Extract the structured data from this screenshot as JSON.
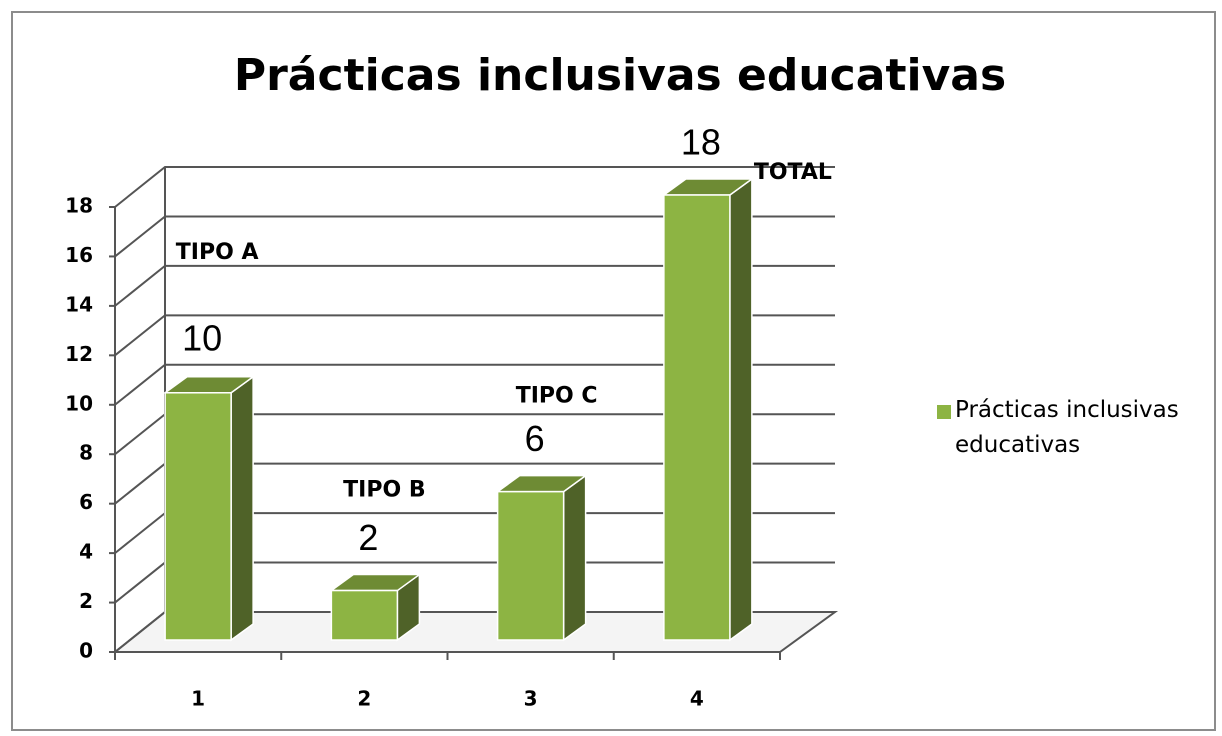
{
  "chart_data": {
    "type": "bar3d",
    "title": "Prácticas inclusivas educativas",
    "categories": [
      "1",
      "2",
      "3",
      "4"
    ],
    "series": [
      {
        "name": "Prácticas inclusivas educativas",
        "color": "#8db443",
        "values": [
          10,
          2,
          6,
          18
        ]
      }
    ],
    "annotations": [
      "TIPO A",
      "TIPO B",
      "TIPO C",
      "TOTAL"
    ],
    "ylim": [
      0,
      18
    ],
    "yticks": [
      0,
      2,
      4,
      6,
      8,
      10,
      12,
      14,
      16,
      18
    ],
    "grid": true,
    "legend": "right"
  }
}
